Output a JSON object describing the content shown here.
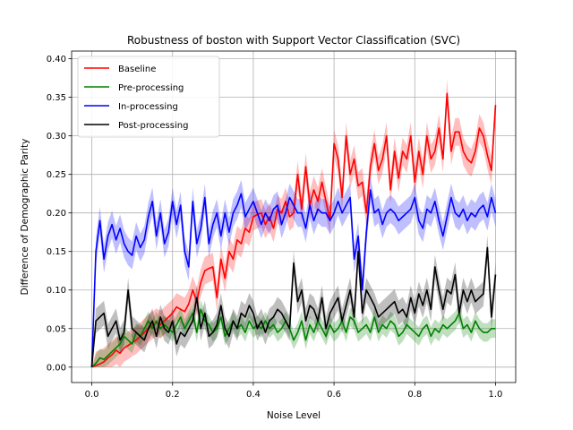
{
  "chart_data": {
    "type": "line",
    "title": "Robustness of boston with Support Vector Classification (SVC)",
    "xlabel": "Noise Level",
    "ylabel": "Difference of Demographic Parity",
    "xlim": [
      -0.05,
      1.05
    ],
    "ylim": [
      -0.02,
      0.41
    ],
    "xticks": [
      0.0,
      0.2,
      0.4,
      0.6,
      0.8,
      1.0
    ],
    "xtick_labels": [
      "0.0",
      "0.2",
      "0.4",
      "0.6",
      "0.8",
      "1.0"
    ],
    "yticks": [
      0.0,
      0.05,
      0.1,
      0.15,
      0.2,
      0.25,
      0.3,
      0.35,
      0.4
    ],
    "ytick_labels": [
      "0.00",
      "0.05",
      "0.10",
      "0.15",
      "0.20",
      "0.25",
      "0.30",
      "0.35",
      "0.40"
    ],
    "grid": true,
    "legend_position": "top-left",
    "band_note": "shaded band = value ± spread",
    "x": [
      0.0,
      0.01,
      0.02,
      0.03,
      0.04,
      0.05,
      0.06,
      0.07,
      0.08,
      0.09,
      0.1,
      0.11,
      0.12,
      0.13,
      0.14,
      0.15,
      0.16,
      0.17,
      0.18,
      0.19,
      0.2,
      0.21,
      0.22,
      0.23,
      0.24,
      0.25,
      0.26,
      0.27,
      0.28,
      0.29,
      0.3,
      0.31,
      0.32,
      0.33,
      0.34,
      0.35,
      0.36,
      0.37,
      0.38,
      0.39,
      0.4,
      0.41,
      0.42,
      0.43,
      0.44,
      0.45,
      0.46,
      0.47,
      0.48,
      0.49,
      0.5,
      0.51,
      0.52,
      0.53,
      0.54,
      0.55,
      0.56,
      0.57,
      0.58,
      0.59,
      0.6,
      0.61,
      0.62,
      0.63,
      0.64,
      0.65,
      0.66,
      0.67,
      0.68,
      0.69,
      0.7,
      0.71,
      0.72,
      0.73,
      0.74,
      0.75,
      0.76,
      0.77,
      0.78,
      0.79,
      0.8,
      0.81,
      0.82,
      0.83,
      0.84,
      0.85,
      0.86,
      0.87,
      0.88,
      0.89,
      0.9,
      0.91,
      0.92,
      0.93,
      0.94,
      0.95,
      0.96,
      0.97,
      0.98,
      0.99,
      1.0
    ],
    "series": [
      {
        "name": "Baseline",
        "color": "#ff0000",
        "band_color": "#ff0000",
        "spread": 0.018,
        "values": [
          0.0,
          0.002,
          0.004,
          0.007,
          0.012,
          0.016,
          0.022,
          0.018,
          0.025,
          0.028,
          0.032,
          0.035,
          0.04,
          0.045,
          0.05,
          0.054,
          0.058,
          0.055,
          0.06,
          0.065,
          0.07,
          0.078,
          0.075,
          0.072,
          0.082,
          0.1,
          0.085,
          0.11,
          0.125,
          0.128,
          0.13,
          0.09,
          0.14,
          0.115,
          0.15,
          0.14,
          0.165,
          0.16,
          0.18,
          0.175,
          0.195,
          0.198,
          0.2,
          0.185,
          0.195,
          0.18,
          0.205,
          0.2,
          0.215,
          0.195,
          0.2,
          0.25,
          0.205,
          0.26,
          0.21,
          0.23,
          0.215,
          0.24,
          0.215,
          0.19,
          0.29,
          0.27,
          0.22,
          0.3,
          0.25,
          0.27,
          0.235,
          0.24,
          0.2,
          0.26,
          0.29,
          0.255,
          0.27,
          0.3,
          0.23,
          0.28,
          0.245,
          0.28,
          0.27,
          0.3,
          0.24,
          0.28,
          0.25,
          0.3,
          0.27,
          0.28,
          0.31,
          0.27,
          0.355,
          0.28,
          0.305,
          0.305,
          0.28,
          0.27,
          0.265,
          0.28,
          0.31,
          0.3,
          0.275,
          0.255,
          0.34
        ]
      },
      {
        "name": "Pre-processing",
        "color": "#008000",
        "band_color": "#008000",
        "spread": 0.012,
        "values": [
          0.0,
          0.005,
          0.012,
          0.01,
          0.015,
          0.02,
          0.025,
          0.03,
          0.04,
          0.035,
          0.03,
          0.045,
          0.04,
          0.05,
          0.06,
          0.05,
          0.06,
          0.05,
          0.055,
          0.05,
          0.045,
          0.055,
          0.065,
          0.05,
          0.06,
          0.07,
          0.045,
          0.075,
          0.06,
          0.055,
          0.045,
          0.05,
          0.065,
          0.04,
          0.05,
          0.06,
          0.05,
          0.055,
          0.045,
          0.06,
          0.05,
          0.055,
          0.05,
          0.06,
          0.05,
          0.055,
          0.045,
          0.05,
          0.06,
          0.05,
          0.035,
          0.045,
          0.06,
          0.035,
          0.055,
          0.045,
          0.06,
          0.05,
          0.04,
          0.055,
          0.045,
          0.05,
          0.06,
          0.045,
          0.065,
          0.06,
          0.045,
          0.05,
          0.055,
          0.045,
          0.065,
          0.045,
          0.055,
          0.05,
          0.06,
          0.055,
          0.04,
          0.045,
          0.055,
          0.05,
          0.045,
          0.04,
          0.05,
          0.055,
          0.04,
          0.05,
          0.045,
          0.055,
          0.05,
          0.055,
          0.06,
          0.07,
          0.05,
          0.055,
          0.045,
          0.06,
          0.05,
          0.045,
          0.045,
          0.05,
          0.05
        ]
      },
      {
        "name": "In-processing",
        "color": "#0000ff",
        "band_color": "#0000ff",
        "spread": 0.018,
        "values": [
          0.0,
          0.15,
          0.19,
          0.14,
          0.17,
          0.185,
          0.165,
          0.18,
          0.16,
          0.15,
          0.145,
          0.17,
          0.155,
          0.165,
          0.195,
          0.215,
          0.17,
          0.2,
          0.16,
          0.175,
          0.215,
          0.185,
          0.21,
          0.15,
          0.13,
          0.215,
          0.16,
          0.18,
          0.22,
          0.16,
          0.185,
          0.2,
          0.17,
          0.2,
          0.175,
          0.2,
          0.21,
          0.225,
          0.195,
          0.205,
          0.215,
          0.2,
          0.185,
          0.2,
          0.19,
          0.205,
          0.21,
          0.185,
          0.2,
          0.22,
          0.21,
          0.2,
          0.2,
          0.18,
          0.21,
          0.19,
          0.205,
          0.2,
          0.2,
          0.19,
          0.2,
          0.215,
          0.2,
          0.21,
          0.22,
          0.14,
          0.17,
          0.1,
          0.175,
          0.23,
          0.2,
          0.205,
          0.185,
          0.2,
          0.205,
          0.2,
          0.19,
          0.195,
          0.2,
          0.205,
          0.22,
          0.19,
          0.18,
          0.205,
          0.2,
          0.215,
          0.19,
          0.17,
          0.195,
          0.22,
          0.2,
          0.195,
          0.205,
          0.19,
          0.2,
          0.195,
          0.205,
          0.21,
          0.195,
          0.22,
          0.2
        ]
      },
      {
        "name": "Post-processing",
        "color": "#000000",
        "band_color": "#000000",
        "spread": 0.016,
        "values": [
          0.0,
          0.06,
          0.065,
          0.07,
          0.04,
          0.05,
          0.06,
          0.035,
          0.045,
          0.1,
          0.05,
          0.045,
          0.04,
          0.035,
          0.05,
          0.06,
          0.04,
          0.065,
          0.05,
          0.045,
          0.06,
          0.03,
          0.045,
          0.04,
          0.05,
          0.06,
          0.09,
          0.05,
          0.07,
          0.04,
          0.045,
          0.055,
          0.08,
          0.05,
          0.04,
          0.06,
          0.05,
          0.07,
          0.065,
          0.08,
          0.07,
          0.05,
          0.06,
          0.045,
          0.06,
          0.065,
          0.075,
          0.07,
          0.06,
          0.05,
          0.135,
          0.085,
          0.1,
          0.06,
          0.08,
          0.075,
          0.06,
          0.09,
          0.05,
          0.07,
          0.08,
          0.09,
          0.06,
          0.08,
          0.1,
          0.065,
          0.15,
          0.07,
          0.1,
          0.09,
          0.08,
          0.065,
          0.07,
          0.075,
          0.08,
          0.085,
          0.07,
          0.075,
          0.065,
          0.09,
          0.07,
          0.095,
          0.08,
          0.1,
          0.075,
          0.13,
          0.1,
          0.075,
          0.1,
          0.095,
          0.12,
          0.07,
          0.1,
          0.085,
          0.1,
          0.085,
          0.09,
          0.095,
          0.155,
          0.065,
          0.12
        ]
      }
    ]
  }
}
